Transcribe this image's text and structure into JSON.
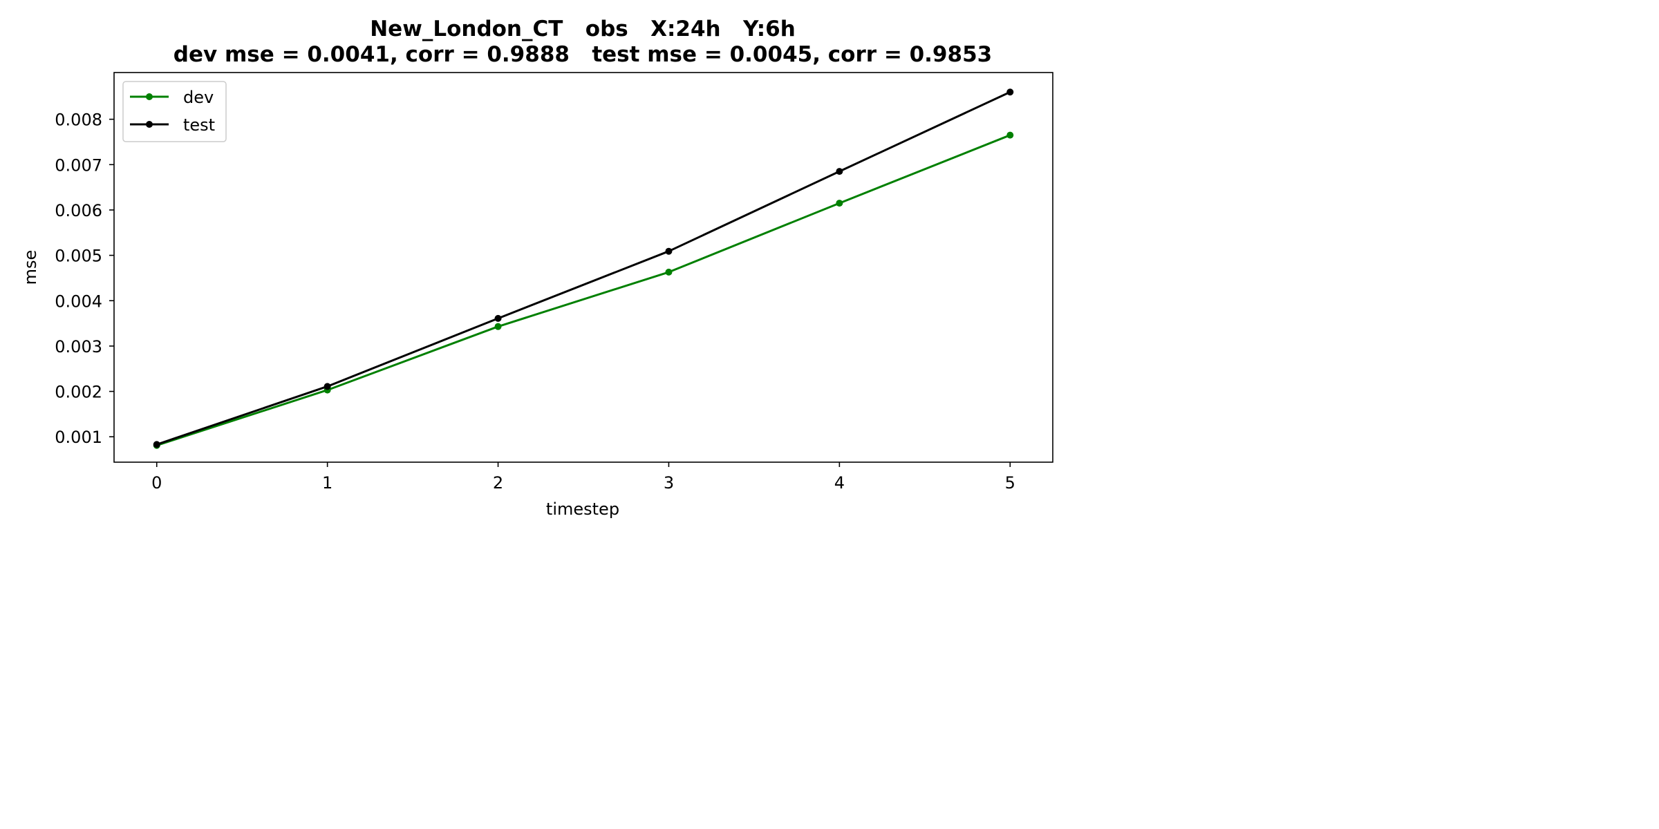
{
  "chart_data": {
    "type": "line",
    "title_line1": "New_London_CT   obs   X:24h   Y:6h",
    "title_line2": "dev mse = 0.0041, corr = 0.9888   test mse = 0.0045, corr = 0.9853",
    "xlabel": "timestep",
    "ylabel": "mse",
    "x": [
      0,
      1,
      2,
      3,
      4,
      5
    ],
    "xlim": [
      -0.25,
      5.25
    ],
    "ylim": [
      0.00044,
      0.00903
    ],
    "xticks": [
      0,
      1,
      2,
      3,
      4,
      5
    ],
    "yticks": [
      0.001,
      0.002,
      0.003,
      0.004,
      0.005,
      0.006,
      0.007,
      0.008
    ],
    "ytick_labels": [
      "0.001",
      "0.002",
      "0.003",
      "0.004",
      "0.005",
      "0.006",
      "0.007",
      "0.008"
    ],
    "grid": false,
    "legend_position": "top-left",
    "series": [
      {
        "name": "dev",
        "color": "#008000",
        "values": [
          0.00081,
          0.00203,
          0.00343,
          0.00463,
          0.00615,
          0.00765
        ]
      },
      {
        "name": "test",
        "color": "#000000",
        "values": [
          0.00083,
          0.00211,
          0.00361,
          0.00509,
          0.00685,
          0.0086
        ]
      }
    ]
  }
}
